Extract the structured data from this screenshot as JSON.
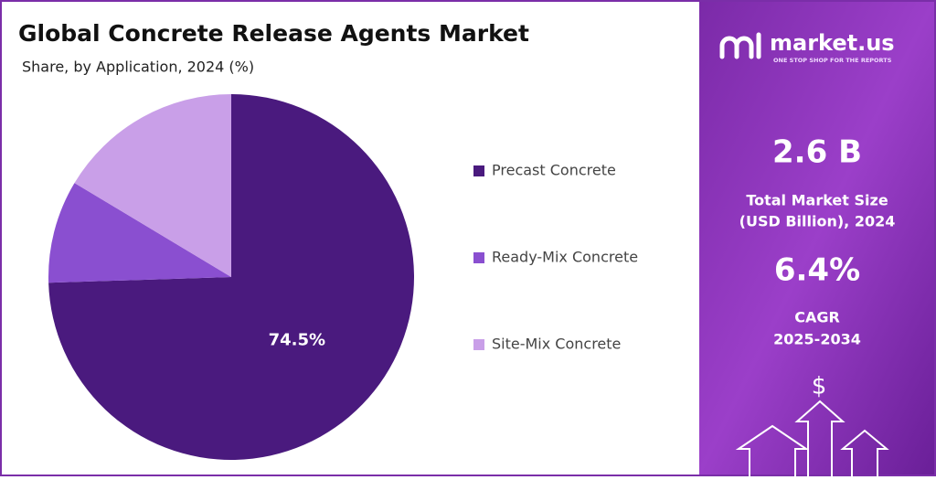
{
  "chart_data": {
    "type": "pie",
    "title": "Global Concrete Release Agents Market",
    "subtitle": "Share, by Application, 2024 (%)",
    "categories": [
      "Precast Concrete",
      "Ready-Mix Concrete",
      "Site-Mix Concrete"
    ],
    "values": [
      74.5,
      9.1,
      16.4
    ],
    "value_labels": [
      "74.5%",
      null,
      null
    ],
    "colors": [
      "#4a1a7e",
      "#8a4fd0",
      "#c99fe8"
    ],
    "legend": "right"
  },
  "panel": {
    "brand": "market.us",
    "tagline": "ONE STOP SHOP FOR THE REPORTS",
    "market_size": "2.6 B",
    "market_size_label_1": "Total Market Size",
    "market_size_label_2": "(USD Billion), 2024",
    "cagr": "6.4%",
    "cagr_label_1": "CAGR",
    "cagr_label_2": "2025-2034",
    "symbol": "$"
  }
}
